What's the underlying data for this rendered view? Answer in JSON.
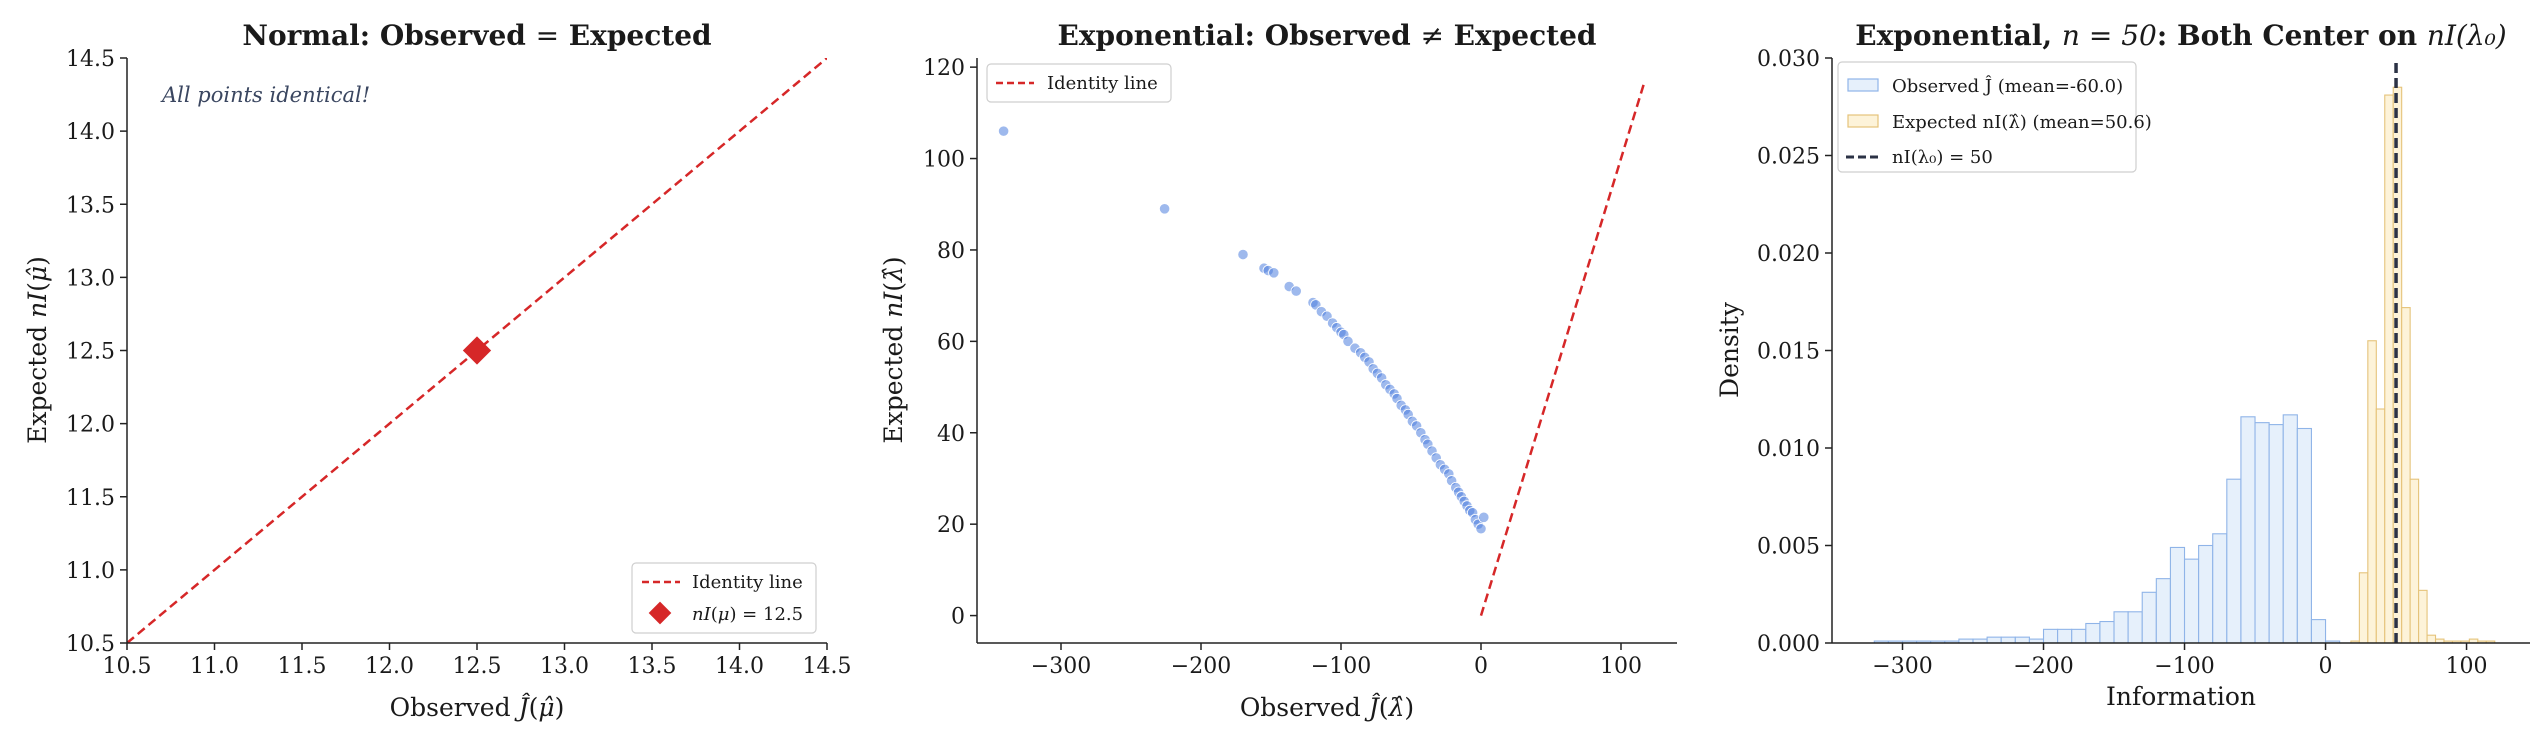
{
  "chart_data": [
    {
      "type": "line",
      "title": "Normal: Observed = Expected",
      "xlabel": "Observed Ĵ(μ̂)",
      "ylabel": "Expected nI(μ̂)",
      "xlim": [
        10.5,
        14.5
      ],
      "ylim": [
        10.5,
        14.5
      ],
      "xticks": [
        "10.5",
        "11.0",
        "11.5",
        "12.0",
        "12.5",
        "13.0",
        "13.5",
        "14.0",
        "14.5"
      ],
      "yticks": [
        "10.5",
        "11.0",
        "11.5",
        "12.0",
        "12.5",
        "13.0",
        "13.5",
        "14.0",
        "14.5"
      ],
      "annotation": "All points identical!",
      "series": [
        {
          "name": "Identity line",
          "color": "#d62728",
          "style": "dashed",
          "x": [
            10.5,
            14.5
          ],
          "y": [
            10.5,
            14.5
          ]
        },
        {
          "name": "nI(μ) = 12.5",
          "color": "#d62728",
          "marker": "diamond",
          "x": [
            12.5
          ],
          "y": [
            12.5
          ]
        }
      ],
      "legend": "lower-right",
      "grid": false
    },
    {
      "type": "scatter",
      "title": "Exponential: Observed ≠ Expected",
      "xlabel": "Observed Ĵ(λ̂)",
      "ylabel": "Expected nI(λ̂)",
      "xlim": [
        -360,
        140
      ],
      "ylim": [
        -6,
        122
      ],
      "xticks": [
        "−300",
        "−200",
        "−100",
        "0",
        "100"
      ],
      "yticks": [
        "0",
        "20",
        "40",
        "60",
        "80",
        "100",
        "120"
      ],
      "series": [
        {
          "name": "Identity line",
          "color": "#d62728",
          "style": "dashed",
          "x": [
            0,
            117
          ],
          "y": [
            0,
            117
          ]
        },
        {
          "name": "",
          "color": "#4f7fde",
          "marker": "circle",
          "x": [
            -341,
            -226,
            -170,
            -155,
            -152,
            -148,
            -137,
            -132,
            -120,
            -118,
            -114,
            -110,
            -106,
            -103,
            -100,
            -98,
            -95,
            -90,
            -86,
            -83,
            -80,
            -77,
            -74,
            -71,
            -68,
            -65,
            -62,
            -60,
            -57,
            -54,
            -52,
            -49,
            -46,
            -43,
            -40,
            -38,
            -35,
            -32,
            -29,
            -26,
            -23,
            -21,
            -18,
            -16,
            -14,
            -12,
            -10,
            -8,
            -6,
            -4,
            -2,
            0,
            2
          ],
          "y": [
            106,
            89,
            79,
            76,
            75.5,
            75,
            72,
            71,
            68.5,
            68,
            66.5,
            65.5,
            64,
            63,
            62,
            61.5,
            60,
            58.5,
            57.5,
            56.5,
            55.5,
            54,
            53,
            52,
            50.5,
            49.5,
            48.5,
            47.5,
            46,
            45,
            44,
            42.5,
            41.5,
            40,
            38.5,
            37.5,
            36,
            34.5,
            33,
            32,
            31,
            29.5,
            28,
            27,
            26,
            25,
            24,
            23,
            22.5,
            21,
            20,
            19,
            21.5
          ]
        }
      ],
      "legend": "top-left",
      "grid": false
    },
    {
      "type": "bar",
      "title_prefix": "Exponential, ",
      "title_math": "n = 50",
      "title_middle": ": Both Center on ",
      "title_suffix": "nI(λ₀)",
      "xlabel": "Information",
      "ylabel": "Density",
      "xlim": [
        -350,
        145
      ],
      "ylim": [
        0,
        0.03
      ],
      "xticks": [
        "−300",
        "−200",
        "−100",
        "0",
        "100"
      ],
      "yticks": [
        "0.000",
        "0.005",
        "0.010",
        "0.015",
        "0.020",
        "0.025",
        "0.030"
      ],
      "series": [
        {
          "name": "Observed Ĵ (mean=-60.0)",
          "color": "#8fb4e8",
          "fill": "#e6f0fb",
          "bin_width": 10,
          "x": [
            -320,
            -310,
            -300,
            -290,
            -280,
            -270,
            -260,
            -250,
            -240,
            -230,
            -220,
            -210,
            -200,
            -190,
            -180,
            -170,
            -160,
            -150,
            -140,
            -130,
            -120,
            -110,
            -100,
            -90,
            -80,
            -70,
            -60,
            -50,
            -40,
            -30,
            -20,
            -10,
            0
          ],
          "values": [
            0.0001,
            0.0001,
            0.0001,
            0.0001,
            0.0001,
            0.0001,
            0.0002,
            0.0002,
            0.0003,
            0.0003,
            0.0003,
            0.0002,
            0.0007,
            0.0007,
            0.0007,
            0.001,
            0.0011,
            0.0016,
            0.0016,
            0.0026,
            0.0033,
            0.0049,
            0.0043,
            0.005,
            0.0056,
            0.0084,
            0.0116,
            0.0113,
            0.0112,
            0.0117,
            0.011,
            0.0012,
            0.0001
          ]
        },
        {
          "name": "Expected nI(λ̂) (mean=50.6)",
          "color": "#e5c37a",
          "fill": "#fdf3d9",
          "bin_width": 6,
          "x": [
            18,
            24,
            30,
            36,
            42,
            48,
            54,
            60,
            66,
            72,
            78,
            84,
            90,
            96,
            102,
            108,
            114
          ],
          "values": [
            0.0001,
            0.0036,
            0.0155,
            0.012,
            0.0281,
            0.0285,
            0.0172,
            0.0084,
            0.0027,
            0.0004,
            0.0002,
            0.0001,
            0.0001,
            0.0001,
            0.0002,
            0.0001,
            0.0001
          ]
        },
        {
          "name": "nI(λ₀) = 50",
          "color": "#2b3245",
          "style": "dashed",
          "x": [
            50,
            50
          ],
          "y": [
            0,
            0.03
          ]
        }
      ],
      "legend": "top-left",
      "grid": false
    }
  ]
}
